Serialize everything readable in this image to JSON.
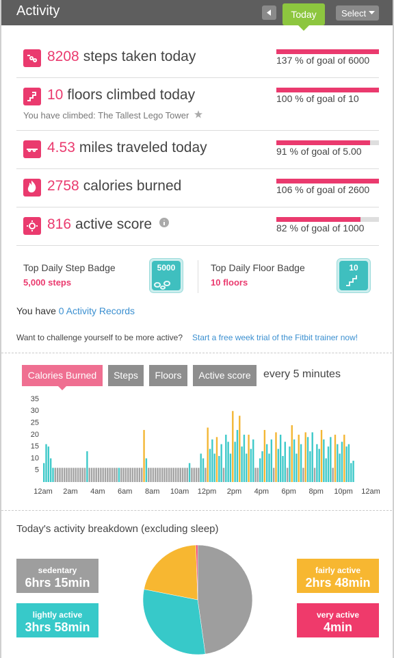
{
  "header": {
    "title": "Activity",
    "today_button": "Today",
    "select_button": "Select"
  },
  "stats": [
    {
      "value": 8208,
      "label": "steps taken today",
      "goal_text": "137 % of goal of 6000",
      "percent": 137
    },
    {
      "value": 10,
      "label": "floors climbed today",
      "sub": "You have climbed: The Tallest Lego Tower",
      "goal_text": "100 % of goal of 10",
      "percent": 100
    },
    {
      "value": 4.53,
      "label": "miles traveled today",
      "goal_text": "91 % of goal of 5.00",
      "percent": 91
    },
    {
      "value": 2758,
      "label": "calories burned",
      "goal_text": "106 % of goal of 2600",
      "percent": 106
    },
    {
      "value": 816,
      "label": "active score",
      "goal_text": "82 % of goal of 1000",
      "percent": 82
    }
  ],
  "badges": [
    {
      "title": "Top Daily Step Badge",
      "value": "5,000 steps",
      "icon": "5000"
    },
    {
      "title": "Top Daily Floor Badge",
      "value": "10 floors",
      "icon": "10"
    }
  ],
  "records": {
    "text": "You have",
    "link": "0 Activity Records"
  },
  "challenge": {
    "text": "Want to challenge yourself to be more active?",
    "link": "Start a free week trial of the Fitbit trainer now!"
  },
  "chart_tabs": {
    "tabs": [
      "Calories Burned",
      "Steps",
      "Floors",
      "Active score"
    ],
    "active": 0,
    "interval": "every 5 minutes"
  },
  "chart_data": [
    {
      "type": "bar",
      "xlim": [
        0,
        1440
      ],
      "xticks": [
        {
          "value": 0,
          "label": "12am"
        },
        {
          "value": 120,
          "label": "2am"
        },
        {
          "value": 240,
          "label": "4am"
        },
        {
          "value": 360,
          "label": "6am"
        },
        {
          "value": 480,
          "label": "8am"
        },
        {
          "value": 600,
          "label": "10am"
        },
        {
          "value": 720,
          "label": "12pm"
        },
        {
          "value": 840,
          "label": "2pm"
        },
        {
          "value": 960,
          "label": "4pm"
        },
        {
          "value": 1080,
          "label": "6pm"
        },
        {
          "value": 1200,
          "label": "8pm"
        },
        {
          "value": 1320,
          "label": "10pm"
        },
        {
          "value": 1440,
          "label": "12am"
        }
      ],
      "ylim": [
        0,
        35
      ],
      "yticks": [
        5,
        10,
        15,
        20,
        25,
        30,
        35
      ],
      "x": [
        0,
        10,
        20,
        30,
        40,
        50,
        60,
        70,
        80,
        90,
        100,
        110,
        120,
        130,
        140,
        150,
        160,
        170,
        180,
        190,
        200,
        210,
        220,
        230,
        240,
        250,
        260,
        270,
        280,
        290,
        300,
        310,
        320,
        330,
        340,
        350,
        360,
        370,
        380,
        390,
        400,
        410,
        420,
        430,
        440,
        450,
        460,
        470,
        480,
        490,
        500,
        510,
        520,
        530,
        540,
        550,
        560,
        570,
        580,
        590,
        600,
        610,
        620,
        630,
        640,
        650,
        660,
        670,
        680,
        690,
        700,
        710,
        720,
        730,
        740,
        750,
        760,
        770,
        780,
        790,
        800,
        810,
        820,
        830,
        840,
        850,
        860,
        870,
        880,
        890,
        900,
        910,
        920,
        930,
        940,
        950,
        960,
        970,
        980,
        990,
        1000,
        1010,
        1020,
        1030,
        1040,
        1050,
        1060,
        1070,
        1080,
        1090,
        1100,
        1110,
        1120,
        1130,
        1140,
        1150,
        1160,
        1170,
        1180,
        1190,
        1200,
        1210,
        1220,
        1230,
        1240,
        1250,
        1260,
        1270,
        1280,
        1290,
        1300,
        1310,
        1320,
        1330,
        1340,
        1350,
        1360,
        1370,
        1380,
        1390,
        1400,
        1410,
        1420,
        1430
      ],
      "values": [
        8,
        16,
        15,
        10,
        6,
        6,
        6,
        6,
        6,
        6,
        6,
        6,
        6,
        6,
        6,
        6,
        6,
        6,
        6,
        13,
        6,
        6,
        6,
        6,
        6,
        6,
        6,
        6,
        6,
        6,
        6,
        6,
        6,
        6,
        6,
        6,
        6,
        6,
        6,
        6,
        6,
        6,
        6,
        6,
        22,
        10,
        6,
        6,
        6,
        6,
        6,
        6,
        6,
        6,
        6,
        6,
        6,
        6,
        6,
        6,
        6,
        6,
        6,
        6,
        8,
        6,
        6,
        6,
        6,
        12,
        10,
        6,
        23,
        14,
        18,
        12,
        19,
        11,
        16,
        6,
        20,
        17,
        12,
        30,
        17,
        22,
        28,
        15,
        20,
        12,
        20,
        14,
        18,
        6,
        6,
        10,
        13,
        22,
        16,
        12,
        18,
        6,
        21,
        14,
        20,
        11,
        17,
        6,
        15,
        24,
        18,
        12,
        20,
        16,
        6,
        21,
        19,
        13,
        21,
        6,
        16,
        14,
        22,
        18,
        10,
        15,
        19,
        6,
        20,
        16,
        12,
        17,
        20,
        15,
        16,
        8,
        9,
        null,
        null,
        null,
        null,
        null,
        null,
        null
      ],
      "colors": [
        "#3ec9c9",
        "#3ec9c9",
        "#3ec9c9",
        "#3ec9c9",
        "#3ec9c9",
        "#a3a3a3",
        "#a3a3a3",
        "#a3a3a3",
        "#a3a3a3",
        "#a3a3a3",
        "#a3a3a3",
        "#a3a3a3",
        "#a3a3a3",
        "#a3a3a3",
        "#a3a3a3",
        "#a3a3a3",
        "#a3a3a3",
        "#a3a3a3",
        "#a3a3a3",
        "#3ec9c9",
        "#a3a3a3",
        "#a3a3a3",
        "#a3a3a3",
        "#a3a3a3",
        "#a3a3a3",
        "#a3a3a3",
        "#a3a3a3",
        "#a3a3a3",
        "#a3a3a3",
        "#a3a3a3",
        "#a3a3a3",
        "#a3a3a3",
        "#a3a3a3",
        "#3ec9c9",
        "#a3a3a3",
        "#a3a3a3",
        "#a3a3a3",
        "#a3a3a3",
        "#a3a3a3",
        "#a3a3a3",
        "#a3a3a3",
        "#a3a3a3",
        "#a3a3a3",
        "#a3a3a3",
        "#f3b634",
        "#3ec9c9",
        "#a3a3a3",
        "#a3a3a3",
        "#a3a3a3",
        "#a3a3a3",
        "#a3a3a3",
        "#a3a3a3",
        "#a3a3a3",
        "#a3a3a3",
        "#a3a3a3",
        "#a3a3a3",
        "#a3a3a3",
        "#a3a3a3",
        "#a3a3a3",
        "#a3a3a3",
        "#a3a3a3",
        "#a3a3a3",
        "#a3a3a3",
        "#a3a3a3",
        "#3ec9c9",
        "#a3a3a3",
        "#a3a3a3",
        "#a3a3a3",
        "#a3a3a3",
        "#3ec9c9",
        "#3ec9c9",
        "#a3a3a3",
        "#f3b634",
        "#3ec9c9",
        "#3ec9c9",
        "#3ec9c9",
        "#f3b634",
        "#3ec9c9",
        "#3ec9c9",
        "#a3a3a3",
        "#3ec9c9",
        "#3ec9c9",
        "#3ec9c9",
        "#f3b634",
        "#3ec9c9",
        "#3ec9c9",
        "#f3b634",
        "#3ec9c9",
        "#3ec9c9",
        "#3ec9c9",
        "#f3b634",
        "#3ec9c9",
        "#3ec9c9",
        "#a3a3a3",
        "#a3a3a3",
        "#3ec9c9",
        "#3ec9c9",
        "#f3b634",
        "#3ec9c9",
        "#3ec9c9",
        "#3ec9c9",
        "#a3a3a3",
        "#f3b634",
        "#3ec9c9",
        "#3ec9c9",
        "#3ec9c9",
        "#3ec9c9",
        "#a3a3a3",
        "#3ec9c9",
        "#f3b634",
        "#3ec9c9",
        "#3ec9c9",
        "#f3b634",
        "#3ec9c9",
        "#a3a3a3",
        "#f3b634",
        "#3ec9c9",
        "#3ec9c9",
        "#3ec9c9",
        "#a3a3a3",
        "#3ec9c9",
        "#3ec9c9",
        "#f3b634",
        "#3ec9c9",
        "#3ec9c9",
        "#3ec9c9",
        "#3ec9c9",
        "#a3a3a3",
        "#f3b634",
        "#3ec9c9",
        "#3ec9c9",
        "#3ec9c9",
        "#f3b634",
        "#3ec9c9",
        "#3ec9c9",
        "#3ec9c9",
        "#3ec9c9",
        "#a3a3a3",
        "#a3a3a3",
        "#a3a3a3",
        "#a3a3a3",
        "#a3a3a3",
        "#a3a3a3",
        "#a3a3a3"
      ]
    },
    {
      "type": "pie",
      "title": "Today's activity breakdown (excluding sleep)",
      "categories": [
        "sedentary",
        "lightly active",
        "fairly active",
        "very active"
      ],
      "values": [
        375,
        238,
        168,
        4
      ],
      "value_labels": [
        "6hrs 15min",
        "3hrs 58min",
        "2hrs 48min",
        "4min"
      ],
      "colors": [
        "#9e9e9e",
        "#37c9c9",
        "#f7b731",
        "#ef3a6b"
      ]
    }
  ]
}
